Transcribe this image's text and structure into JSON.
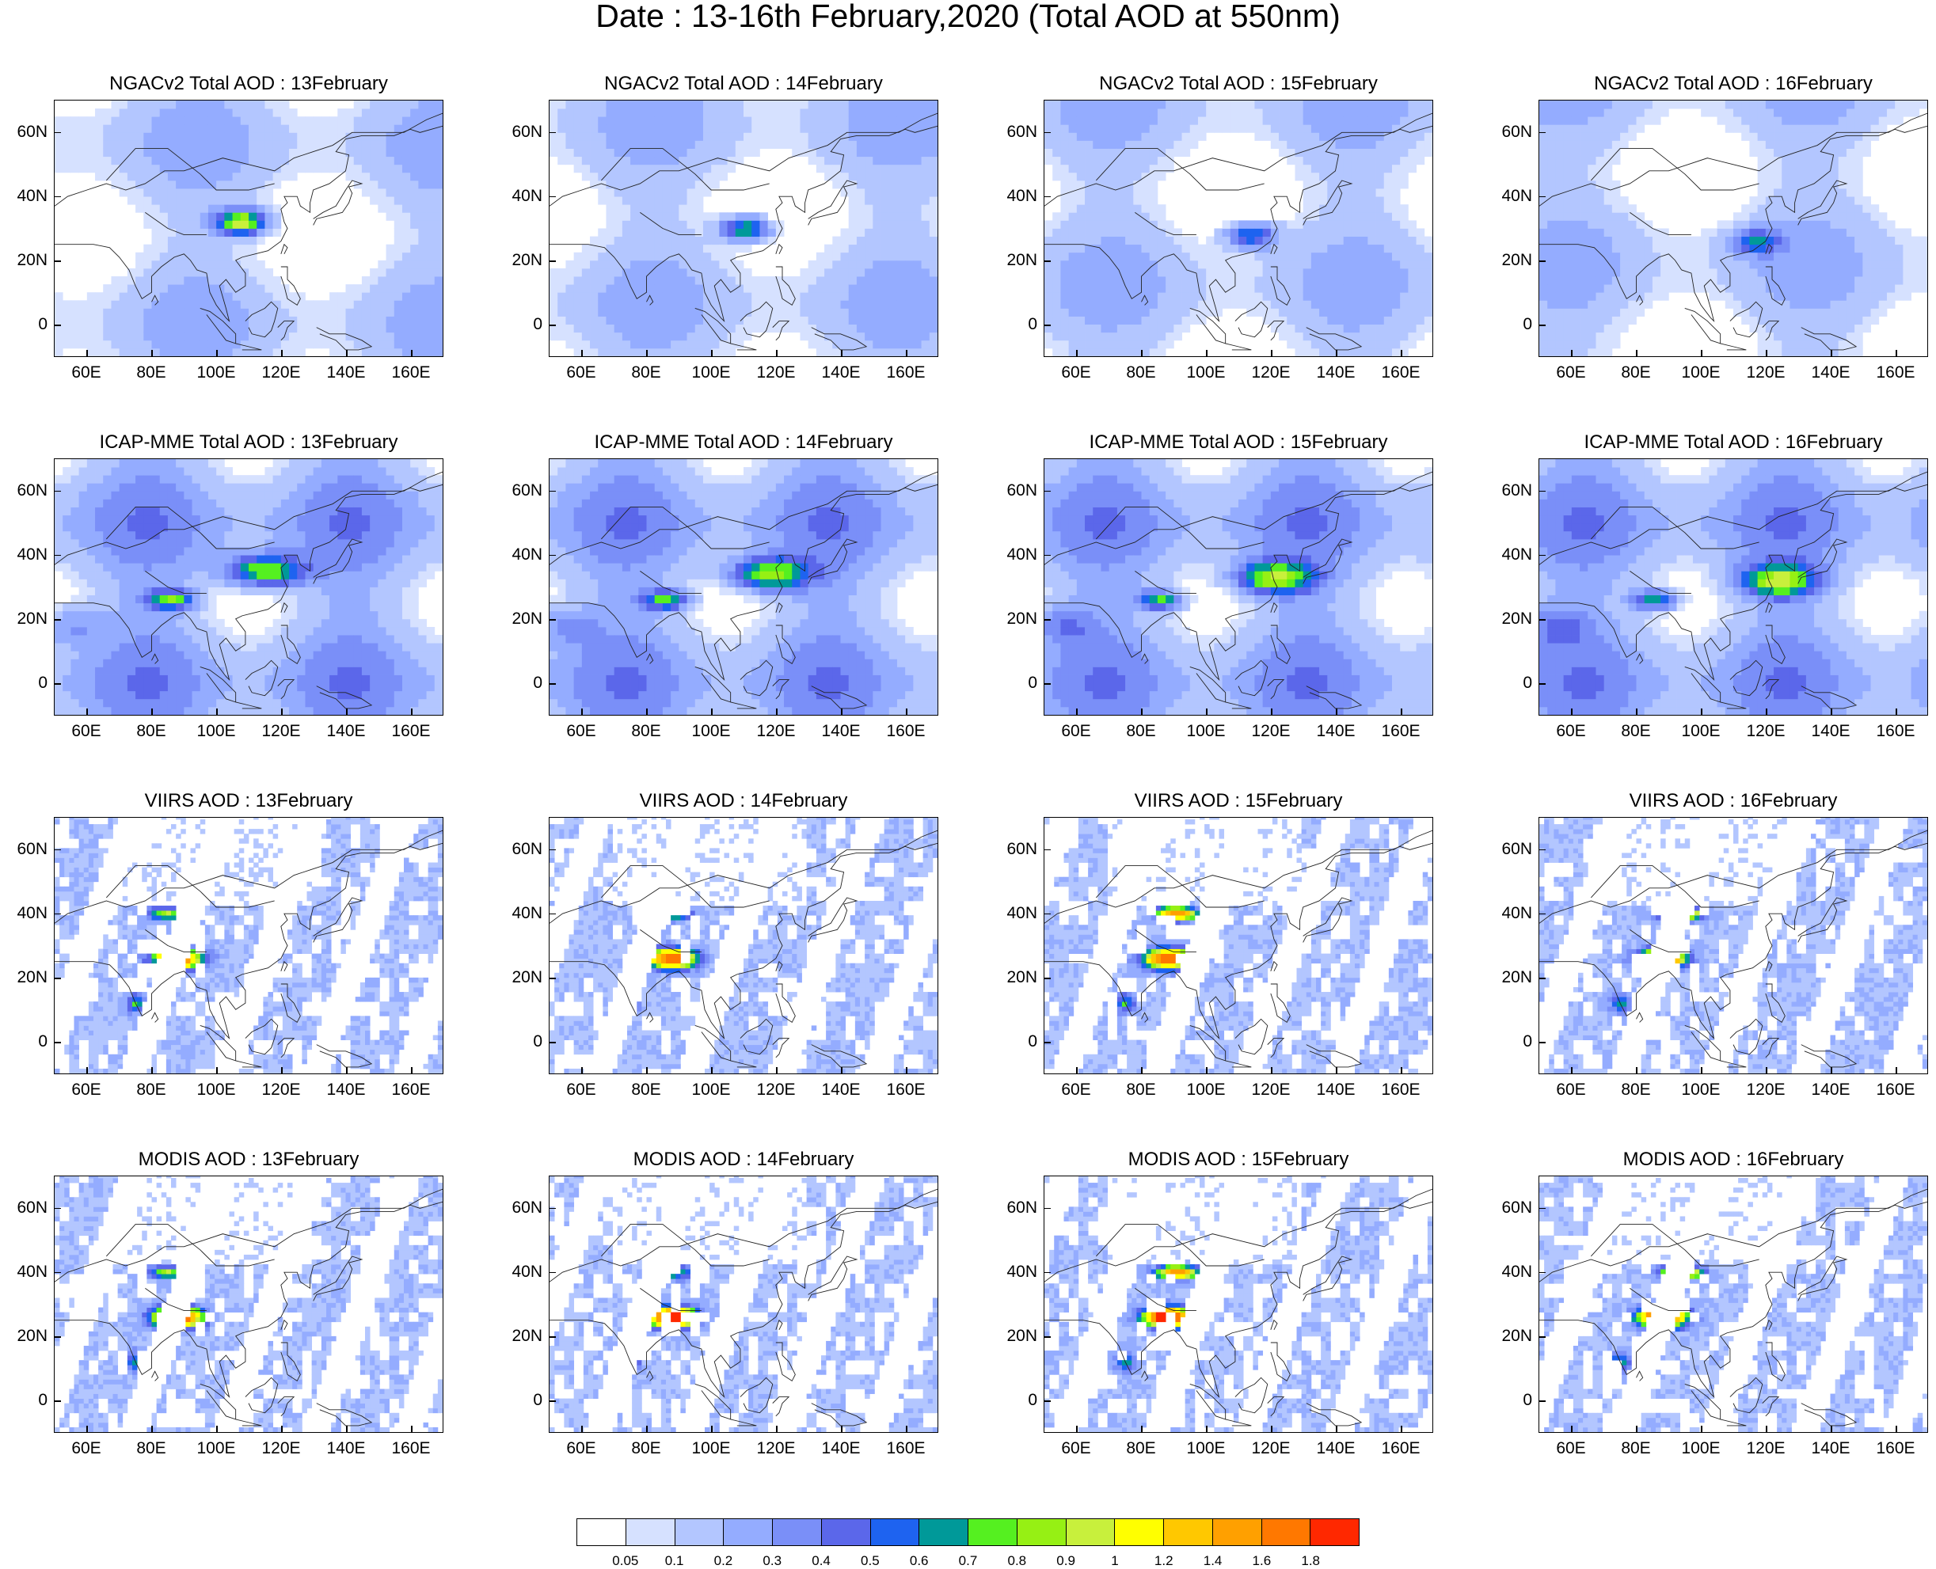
{
  "title": "Date : 13-16th February,2020 (Total AOD at 550nm)",
  "rows": [
    {
      "source": "NGACv2",
      "panels": [
        {
          "title": "NGACv2 Total AOD : 13February"
        },
        {
          "title": "NGACv2 Total AOD : 14February"
        },
        {
          "title": "NGACv2 Total AOD : 15February"
        },
        {
          "title": "NGACv2 Total AOD : 16February"
        }
      ]
    },
    {
      "source": "ICAP-MME",
      "panels": [
        {
          "title": "ICAP-MME Total AOD : 13February"
        },
        {
          "title": "ICAP-MME Total AOD : 14February"
        },
        {
          "title": "ICAP-MME Total AOD : 15February"
        },
        {
          "title": "ICAP-MME Total AOD : 16February"
        }
      ]
    },
    {
      "source": "VIIRS",
      "panels": [
        {
          "title": "VIIRS AOD : 13February"
        },
        {
          "title": "VIIRS AOD : 14February"
        },
        {
          "title": "VIIRS AOD : 15February"
        },
        {
          "title": "VIIRS AOD : 16February"
        }
      ]
    },
    {
      "source": "MODIS",
      "panels": [
        {
          "title": "MODIS AOD : 13February"
        },
        {
          "title": "MODIS AOD : 14February"
        },
        {
          "title": "MODIS AOD : 15February"
        },
        {
          "title": "MODIS AOD : 16February"
        }
      ]
    }
  ],
  "lat_labels": [
    "60N",
    "40N",
    "20N",
    "0"
  ],
  "lon_labels": [
    "60E",
    "80E",
    "100E",
    "120E",
    "140E",
    "160E"
  ],
  "colorbar": {
    "labels": [
      "0.05",
      "0.1",
      "0.2",
      "0.3",
      "0.4",
      "0.5",
      "0.6",
      "0.7",
      "0.8",
      "0.9",
      "1",
      "1.2",
      "1.4",
      "1.6",
      "1.8"
    ],
    "colors": [
      "#ffffff",
      "#d6e1ff",
      "#b3c6ff",
      "#94acff",
      "#7a8ff8",
      "#5b67ea",
      "#1e63f0",
      "#009999",
      "#55f020",
      "#96f014",
      "#c8f03c",
      "#ffff00",
      "#ffc800",
      "#ffa000",
      "#ff7800",
      "#ff2800"
    ]
  }
}
